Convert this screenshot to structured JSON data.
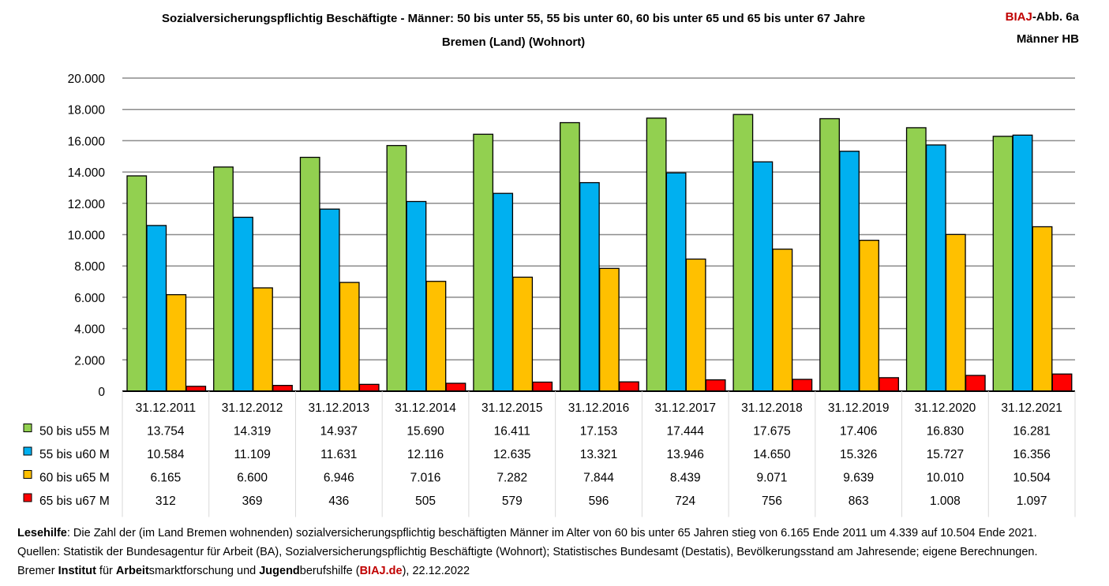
{
  "header": {
    "title_line1": "Sozialversicherungspflichtig Beschäftigte - Männer: 50 bis unter 55, 55 bis unter 60, 60 bis unter 65 und 65 bis unter 67 Jahre",
    "title_line2": "Bremen (Land) (Wohnort)",
    "tag_brand": "BIAJ",
    "tag_rest": "-Abb. 6a",
    "tag_line2": "Männer HB"
  },
  "chart_data": {
    "type": "bar",
    "title": "Sozialversicherungspflichtig Beschäftigte - Männer: 50 bis unter 55, 55 bis unter 60, 60 bis unter 65 und 65 bis unter 67 Jahre",
    "subtitle": "Bremen (Land) (Wohnort)",
    "categories": [
      "31.12.2011",
      "31.12.2012",
      "31.12.2013",
      "31.12.2014",
      "31.12.2015",
      "31.12.2016",
      "31.12.2017",
      "31.12.2018",
      "31.12.2019",
      "31.12.2020",
      "31.12.2021"
    ],
    "ylim": [
      0,
      20000
    ],
    "yticks": [
      0,
      2000,
      4000,
      6000,
      8000,
      10000,
      12000,
      14000,
      16000,
      18000,
      20000
    ],
    "ytick_labels": [
      "0",
      "2.000",
      "4.000",
      "6.000",
      "8.000",
      "10.000",
      "12.000",
      "14.000",
      "16.000",
      "18.000",
      "20.000"
    ],
    "grid": true,
    "legend": "data table below chart",
    "series": [
      {
        "name": "50 bis u55 M",
        "color": "#92d050",
        "values": [
          13754,
          14319,
          14937,
          15690,
          16411,
          17153,
          17444,
          17675,
          17406,
          16830,
          16281
        ],
        "labels": [
          "13.754",
          "14.319",
          "14.937",
          "15.690",
          "16.411",
          "17.153",
          "17.444",
          "17.675",
          "17.406",
          "16.830",
          "16.281"
        ]
      },
      {
        "name": "55 bis u60 M",
        "color": "#00b0f0",
        "values": [
          10584,
          11109,
          11631,
          12116,
          12635,
          13321,
          13946,
          14650,
          15326,
          15727,
          16356
        ],
        "labels": [
          "10.584",
          "11.109",
          "11.631",
          "12.116",
          "12.635",
          "13.321",
          "13.946",
          "14.650",
          "15.326",
          "15.727",
          "16.356"
        ]
      },
      {
        "name": "60 bis u65 M",
        "color": "#ffc000",
        "values": [
          6165,
          6600,
          6946,
          7016,
          7282,
          7844,
          8439,
          9071,
          9639,
          10010,
          10504
        ],
        "labels": [
          "6.165",
          "6.600",
          "6.946",
          "7.016",
          "7.282",
          "7.844",
          "8.439",
          "9.071",
          "9.639",
          "10.010",
          "10.504"
        ]
      },
      {
        "name": "65 bis u67 M",
        "color": "#ff0000",
        "values": [
          312,
          369,
          436,
          505,
          579,
          596,
          724,
          756,
          863,
          1008,
          1097
        ],
        "labels": [
          "312",
          "369",
          "436",
          "505",
          "579",
          "596",
          "724",
          "756",
          "863",
          "1.008",
          "1.097"
        ]
      }
    ]
  },
  "footer": {
    "line1_bold": "Lesehilfe",
    "line1_text": ": Die Zahl der (im Land Bremen wohnenden) sozialversicherungspflichtig beschäftigten Männer im Alter von 60 bis unter 65 Jahren stieg von 6.165 Ende 2011 um 4.339 auf 10.504 Ende 2021.",
    "line2": "Quellen: Statistik der Bundesagentur für Arbeit (BA), Sozialversicherungspflichtig Beschäftigte (Wohnort); Statistisches Bundesamt (Destatis), Bevölkerungsstand am Jahresende; eigene Berechnungen.",
    "line3_a": "Bremer ",
    "line3_b": "Institut",
    "line3_c": " für ",
    "line3_d": "Arbeit",
    "line3_e": "smarktforschung und ",
    "line3_f": "Jugend",
    "line3_g": "berufshilfe (",
    "line3_h": "BIAJ.de",
    "line3_i": "), 22.12.2022"
  }
}
